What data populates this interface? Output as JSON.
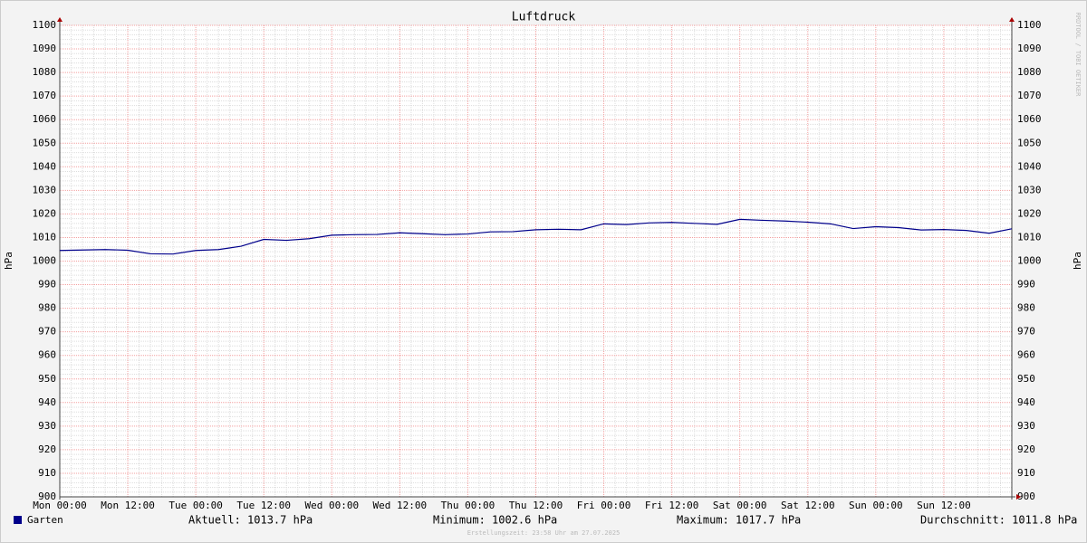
{
  "chart_data": {
    "type": "line",
    "title": "Luftdruck",
    "ylabel": "hPa",
    "x": [
      0,
      4,
      8,
      12,
      16,
      20,
      24,
      28,
      32,
      36,
      40,
      44,
      48,
      52,
      56,
      60,
      64,
      68,
      72,
      76,
      80,
      84,
      88,
      92,
      96,
      100,
      104,
      108,
      112,
      116,
      120,
      124,
      128,
      132,
      136,
      140,
      144,
      148,
      152,
      156,
      160,
      164,
      168
    ],
    "series": [
      {
        "name": "Garten",
        "color": "#00008b",
        "values": [
          1004.5,
          1004.7,
          1004.9,
          1004.6,
          1003.1,
          1003.0,
          1004.5,
          1004.9,
          1006.3,
          1009.2,
          1008.8,
          1009.5,
          1011.0,
          1011.2,
          1011.3,
          1012.0,
          1011.6,
          1011.2,
          1011.5,
          1012.4,
          1012.5,
          1013.3,
          1013.5,
          1013.3,
          1015.8,
          1015.5,
          1016.2,
          1016.4,
          1016.0,
          1015.6,
          1017.7,
          1017.3,
          1017.0,
          1016.5,
          1015.8,
          1013.8,
          1014.6,
          1014.2,
          1013.2,
          1013.4,
          1013.0,
          1011.8,
          1013.7
        ]
      }
    ],
    "xlim": [
      0,
      168
    ],
    "xticks": [
      {
        "value": 0,
        "label": "Mon 00:00"
      },
      {
        "value": 12,
        "label": "Mon 12:00"
      },
      {
        "value": 24,
        "label": "Tue 00:00"
      },
      {
        "value": 36,
        "label": "Tue 12:00"
      },
      {
        "value": 48,
        "label": "Wed 00:00"
      },
      {
        "value": 60,
        "label": "Wed 12:00"
      },
      {
        "value": 72,
        "label": "Thu 00:00"
      },
      {
        "value": 84,
        "label": "Thu 12:00"
      },
      {
        "value": 96,
        "label": "Fri 00:00"
      },
      {
        "value": 108,
        "label": "Fri 12:00"
      },
      {
        "value": 120,
        "label": "Sat 00:00"
      },
      {
        "value": 132,
        "label": "Sat 12:00"
      },
      {
        "value": 144,
        "label": "Sun 00:00"
      },
      {
        "value": 156,
        "label": "Sun 12:00"
      }
    ],
    "ylim": [
      900,
      1100
    ],
    "yticks": [
      900,
      910,
      920,
      930,
      940,
      950,
      960,
      970,
      980,
      990,
      1000,
      1010,
      1020,
      1030,
      1040,
      1050,
      1060,
      1070,
      1080,
      1090,
      1100
    ],
    "grid": true,
    "stats": [
      "Aktuell: 1013.7 hPa",
      "Minimum: 1002.6 hPa",
      "Maximum: 1017.7 hPa",
      "Durchschnitt: 1011.8 hPa"
    ],
    "watermark": "RRDTOOL / TOBI OETIKER",
    "footer": "Erstellungszeit: 23:58 Uhr am 27.07.2025"
  }
}
